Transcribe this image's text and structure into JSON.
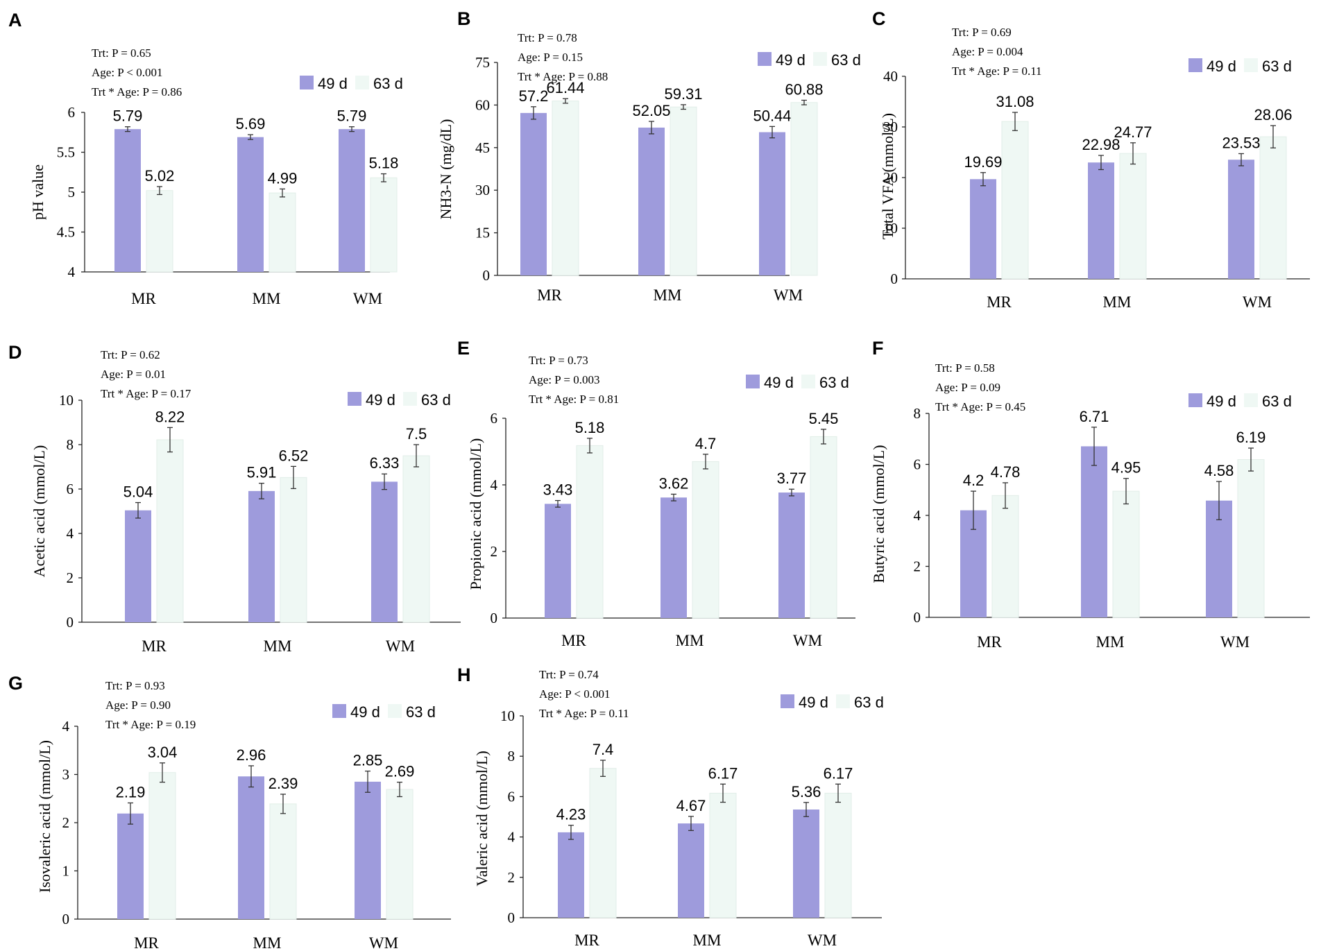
{
  "colors": {
    "d49": "#9e9bdc",
    "d63": "#eff8f4",
    "d63_stroke": "#e2eee8",
    "axis": "#222222"
  },
  "chart_data": [
    {
      "panel": "A",
      "type": "bar",
      "ylabel": "pH value",
      "ylim": [
        4,
        6
      ],
      "yticks": [
        "4",
        "4.5",
        "5",
        "5.5",
        "6"
      ],
      "categories": [
        "MR",
        "MM",
        "WM"
      ],
      "stats": [
        "Trt: P = 0.65",
        "Age:  P < 0.001",
        "Trt * Age: P = 0.86"
      ],
      "legend": [
        "49 d",
        "63 d"
      ],
      "series": [
        {
          "name": "49 d",
          "values": [
            5.79,
            5.69,
            5.79
          ],
          "errors": [
            0.03,
            0.03,
            0.03
          ],
          "labels": [
            "5.79",
            "5.69",
            "5.79"
          ]
        },
        {
          "name": "63 d",
          "values": [
            5.02,
            4.99,
            5.18
          ],
          "errors": [
            0.05,
            0.05,
            0.05
          ],
          "labels": [
            "5.02",
            "4.99",
            "5.18"
          ]
        }
      ]
    },
    {
      "panel": "B",
      "type": "bar",
      "ylabel": "NH3-N (mg/dL)",
      "ylim": [
        0,
        75
      ],
      "yticks": [
        "0",
        "15",
        "30",
        "45",
        "60",
        "75"
      ],
      "categories": [
        "MR",
        "MM",
        "WM"
      ],
      "stats": [
        "Trt: P = 0.78",
        "Age:  P = 0.15",
        "Trt * Age: P = 0.88"
      ],
      "legend": [
        "49 d",
        "63 d"
      ],
      "series": [
        {
          "name": "49 d",
          "values": [
            57.2,
            52.05,
            50.44
          ],
          "errors": [
            2.2,
            2.2,
            2.0
          ],
          "labels": [
            "57.2",
            "52.05",
            "50.44"
          ]
        },
        {
          "name": "63 d",
          "values": [
            61.44,
            59.31,
            60.88
          ],
          "errors": [
            0.8,
            0.8,
            0.8
          ],
          "labels": [
            "61.44",
            "59.31",
            "60.88"
          ]
        }
      ]
    },
    {
      "panel": "C",
      "type": "bar",
      "ylabel": "Total VFA (mmol/L)",
      "ylim": [
        0,
        40
      ],
      "yticks": [
        "0",
        "10",
        "20",
        "30",
        "40"
      ],
      "categories": [
        "MR",
        "MM",
        "WM"
      ],
      "stats": [
        "Trt: P = 0.69",
        "Age:  P = 0.004",
        "Trt * Age: P = 0.11"
      ],
      "legend": [
        "49 d",
        "63 d"
      ],
      "series": [
        {
          "name": "49 d",
          "values": [
            19.69,
            22.98,
            23.53
          ],
          "errors": [
            1.3,
            1.4,
            1.2
          ],
          "labels": [
            "19.69",
            "22.98",
            "23.53"
          ]
        },
        {
          "name": "63 d",
          "values": [
            31.08,
            24.77,
            28.06
          ],
          "errors": [
            1.8,
            2.1,
            2.2
          ],
          "labels": [
            "31.08",
            "24.77",
            "28.06"
          ]
        }
      ]
    },
    {
      "panel": "D",
      "type": "bar",
      "ylabel": "Acetic acid (mmol/L)",
      "ylim": [
        0,
        10
      ],
      "yticks": [
        "0",
        "2",
        "4",
        "6",
        "8",
        "10"
      ],
      "categories": [
        "MR",
        "MM",
        "WM"
      ],
      "stats": [
        "Trt: P = 0.62",
        "Age:  P = 0.01",
        "Trt * Age: P = 0.17"
      ],
      "legend": [
        "49 d",
        "63 d"
      ],
      "series": [
        {
          "name": "49 d",
          "values": [
            5.04,
            5.91,
            6.33
          ],
          "errors": [
            0.35,
            0.35,
            0.35
          ],
          "labels": [
            "5.04",
            "5.91",
            "6.33"
          ]
        },
        {
          "name": "63 d",
          "values": [
            8.22,
            6.52,
            7.5
          ],
          "errors": [
            0.55,
            0.5,
            0.5
          ],
          "labels": [
            "8.22",
            "6.52",
            "7.5"
          ]
        }
      ]
    },
    {
      "panel": "E",
      "type": "bar",
      "ylabel": "Propionic acid (mmol/L)",
      "ylim": [
        0,
        6
      ],
      "yticks": [
        "0",
        "2",
        "4",
        "6"
      ],
      "categories": [
        "MR",
        "MM",
        "WM"
      ],
      "stats": [
        "Trt: P = 0.73",
        "Age:  P = 0.003",
        "Trt * Age: P = 0.81"
      ],
      "legend": [
        "49 d",
        "63 d"
      ],
      "series": [
        {
          "name": "49 d",
          "values": [
            3.43,
            3.62,
            3.77
          ],
          "errors": [
            0.1,
            0.1,
            0.1
          ],
          "labels": [
            "3.43",
            "3.62",
            "3.77"
          ]
        },
        {
          "name": "63 d",
          "values": [
            5.18,
            4.7,
            5.45
          ],
          "errors": [
            0.22,
            0.22,
            0.22
          ],
          "labels": [
            "5.18",
            "4.7",
            "5.45"
          ]
        }
      ]
    },
    {
      "panel": "F",
      "type": "bar",
      "ylabel": "Butyric acid (mmol/L)",
      "ylim": [
        0,
        8
      ],
      "yticks": [
        "0",
        "2",
        "4",
        "6",
        "8"
      ],
      "categories": [
        "MR",
        "MM",
        "WM"
      ],
      "stats": [
        "Trt: P = 0.58",
        "Age:  P = 0.09",
        "Trt * Age: P = 0.45"
      ],
      "legend": [
        "49 d",
        "63 d"
      ],
      "series": [
        {
          "name": "49 d",
          "values": [
            4.2,
            6.71,
            4.58
          ],
          "errors": [
            0.75,
            0.75,
            0.75
          ],
          "labels": [
            "4.2",
            "6.71",
            "4.58"
          ]
        },
        {
          "name": "63 d",
          "values": [
            4.78,
            4.95,
            6.19
          ],
          "errors": [
            0.5,
            0.5,
            0.45
          ],
          "labels": [
            "4.78",
            "4.95",
            "6.19"
          ]
        }
      ]
    },
    {
      "panel": "G",
      "type": "bar",
      "ylabel": "Isovaleric acid (mmol/L)",
      "ylim": [
        0,
        4
      ],
      "yticks": [
        "0",
        "1",
        "2",
        "3",
        "4"
      ],
      "categories": [
        "MR",
        "MM",
        "WM"
      ],
      "stats": [
        "Trt: P = 0.93",
        "Age:  P = 0.90",
        "Trt * Age: P = 0.19"
      ],
      "legend": [
        "49 d",
        "63 d"
      ],
      "series": [
        {
          "name": "49 d",
          "values": [
            2.19,
            2.96,
            2.85
          ],
          "errors": [
            0.22,
            0.22,
            0.22
          ],
          "labels": [
            "2.19",
            "2.96",
            "2.85"
          ]
        },
        {
          "name": "63 d",
          "values": [
            3.04,
            2.39,
            2.69
          ],
          "errors": [
            0.2,
            0.2,
            0.15
          ],
          "labels": [
            "3.04",
            "2.39",
            "2.69"
          ]
        }
      ]
    },
    {
      "panel": "H",
      "type": "bar",
      "ylabel": "Valeric acid (mmol/L)",
      "ylim": [
        0,
        10
      ],
      "yticks": [
        "0",
        "2",
        "4",
        "6",
        "8",
        "10"
      ],
      "categories": [
        "MR",
        "MM",
        "WM"
      ],
      "stats": [
        "Trt: P = 0.74",
        "Age:  P < 0.001",
        "Trt * Age: P = 0.11"
      ],
      "legend": [
        "49 d",
        "63 d"
      ],
      "series": [
        {
          "name": "49 d",
          "values": [
            4.23,
            4.67,
            5.36
          ],
          "errors": [
            0.35,
            0.35,
            0.35
          ],
          "labels": [
            "4.23",
            "4.67",
            "5.36"
          ]
        },
        {
          "name": "63 d",
          "values": [
            7.4,
            6.17,
            6.17
          ],
          "errors": [
            0.4,
            0.45,
            0.45
          ],
          "labels": [
            "7.4",
            "6.17",
            "6.17"
          ]
        }
      ]
    }
  ]
}
